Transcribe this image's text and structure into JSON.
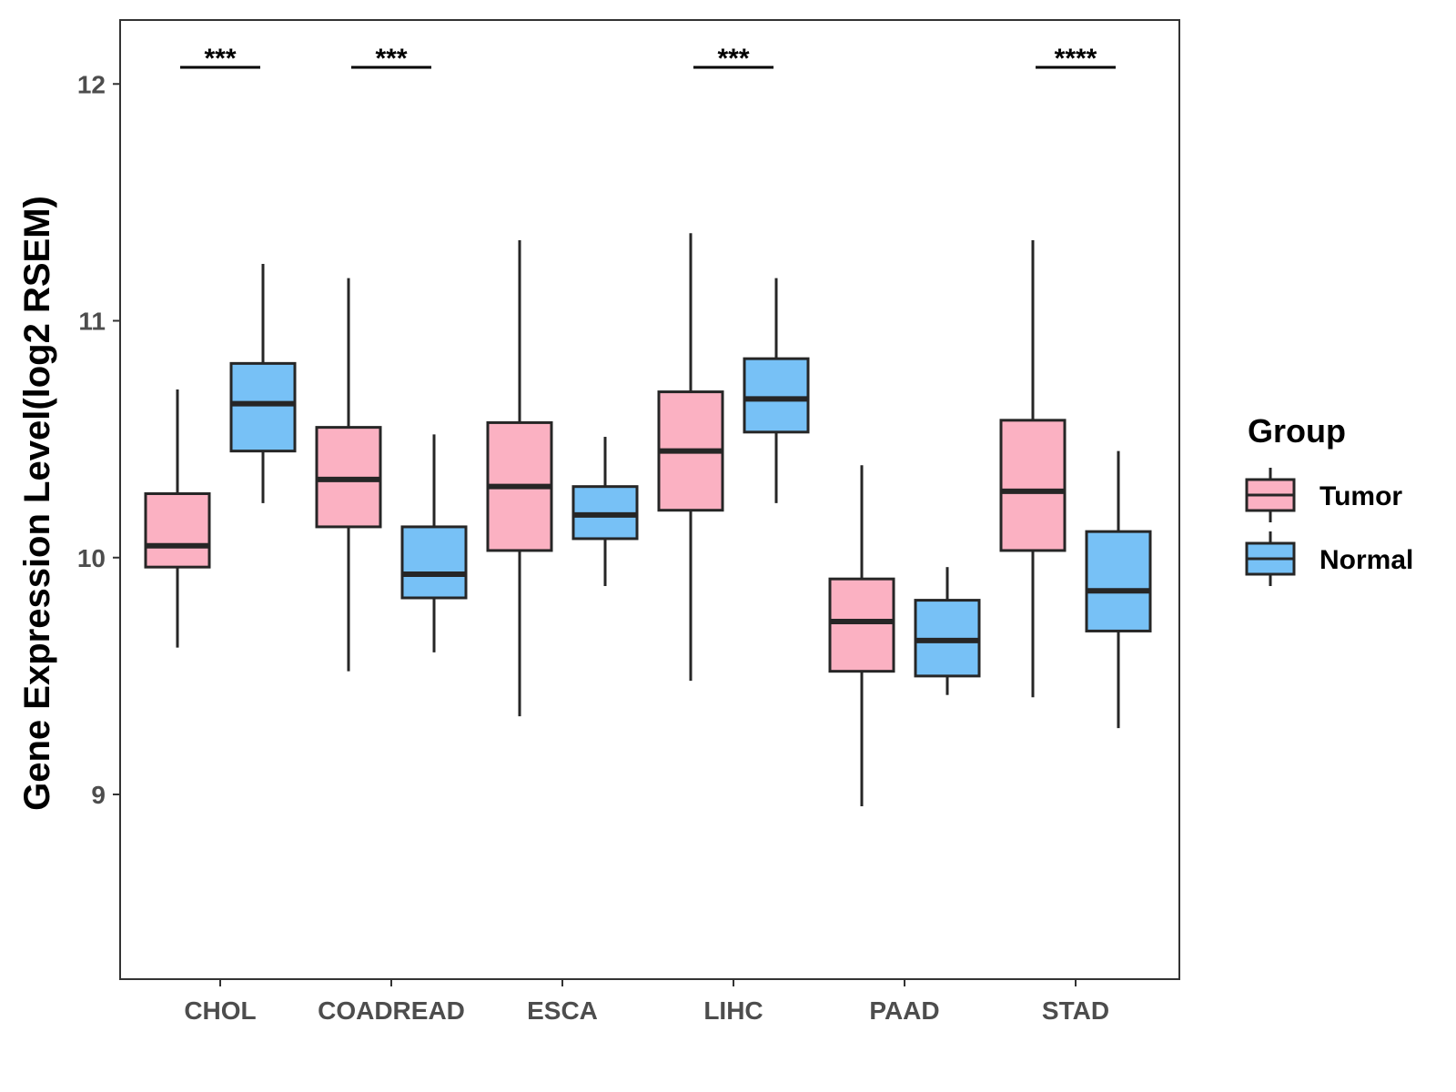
{
  "chart_data": {
    "type": "boxplot",
    "title": "",
    "xlabel": "",
    "ylabel": "Gene Expression Level(log2 RSEM)",
    "ylim": [
      8.22,
      12.27
    ],
    "yticks": [
      9,
      10,
      11,
      12
    ],
    "categories": [
      "CHOL",
      "COADREAD",
      "ESCA",
      "LIHC",
      "PAAD",
      "STAD"
    ],
    "legend": {
      "title": "Group",
      "position": "right",
      "entries": [
        {
          "name": "Tumor",
          "color": "#fbb1c2"
        },
        {
          "name": "Normal",
          "color": "#77c1f6"
        }
      ]
    },
    "series": [
      {
        "name": "Tumor",
        "color": "#fbb1c2",
        "boxes": [
          {
            "min": 9.62,
            "q1": 9.96,
            "median": 10.05,
            "q3": 10.27,
            "max": 10.71
          },
          {
            "min": 9.52,
            "q1": 10.13,
            "median": 10.33,
            "q3": 10.55,
            "max": 11.18
          },
          {
            "min": 9.33,
            "q1": 10.03,
            "median": 10.3,
            "q3": 10.57,
            "max": 11.34
          },
          {
            "min": 9.48,
            "q1": 10.2,
            "median": 10.45,
            "q3": 10.7,
            "max": 11.37
          },
          {
            "min": 8.95,
            "q1": 9.52,
            "median": 9.73,
            "q3": 9.91,
            "max": 10.39
          },
          {
            "min": 9.41,
            "q1": 10.03,
            "median": 10.28,
            "q3": 10.58,
            "max": 11.34
          }
        ]
      },
      {
        "name": "Normal",
        "color": "#77c1f6",
        "boxes": [
          {
            "min": 10.23,
            "q1": 10.45,
            "median": 10.65,
            "q3": 10.82,
            "max": 11.24
          },
          {
            "min": 9.6,
            "q1": 9.83,
            "median": 9.93,
            "q3": 10.13,
            "max": 10.52
          },
          {
            "min": 9.88,
            "q1": 10.08,
            "median": 10.18,
            "q3": 10.3,
            "max": 10.51
          },
          {
            "min": 10.23,
            "q1": 10.53,
            "median": 10.67,
            "q3": 10.84,
            "max": 11.18
          },
          {
            "min": 9.42,
            "q1": 9.5,
            "median": 9.65,
            "q3": 9.82,
            "max": 9.96
          },
          {
            "min": 9.28,
            "q1": 9.69,
            "median": 9.86,
            "q3": 10.11,
            "max": 10.45
          }
        ]
      }
    ],
    "significance": [
      {
        "category": "CHOL",
        "label": "***"
      },
      {
        "category": "COADREAD",
        "label": "***"
      },
      {
        "category": "LIHC",
        "label": "***"
      },
      {
        "category": "STAD",
        "label": "****"
      }
    ]
  }
}
